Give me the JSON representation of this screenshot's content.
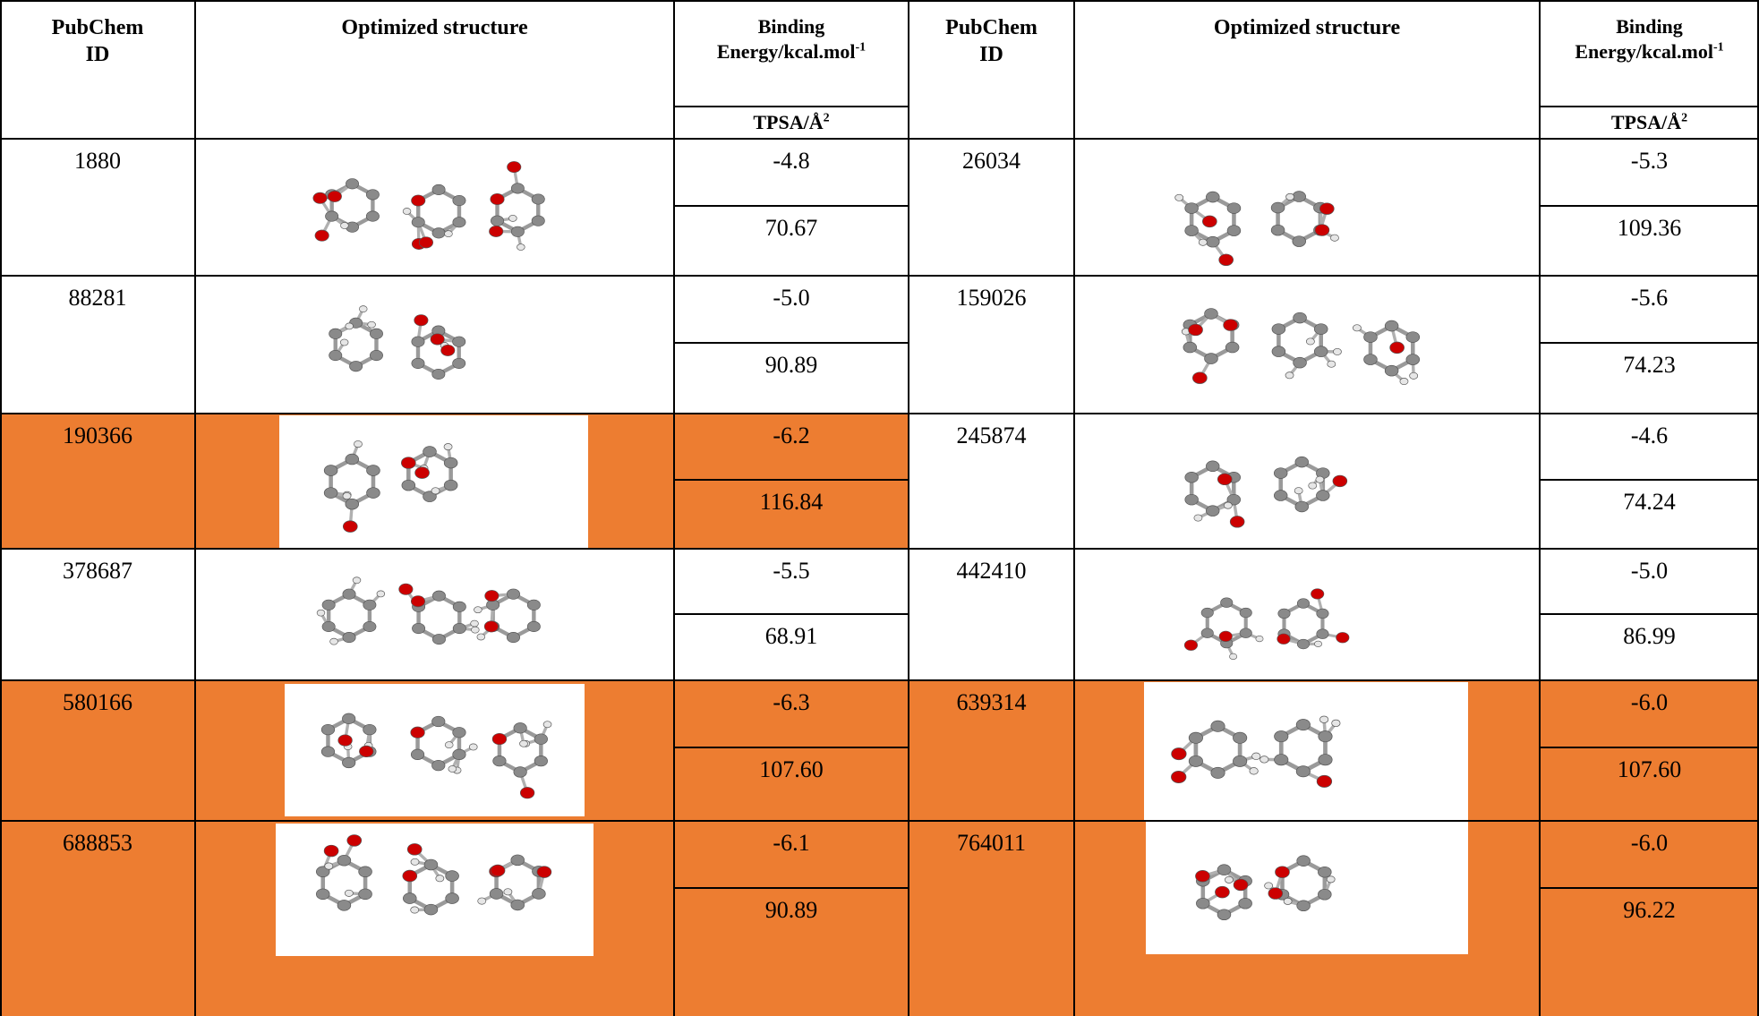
{
  "headers": {
    "pubchem_line1": "PubChem",
    "pubchem_line2": "ID",
    "structure": "Optimized structure",
    "binding_line1": "Binding",
    "binding_line2": "Energy/kcal.mol",
    "binding_sup": "-1",
    "tpsa": "TPSA/Å",
    "tpsa_sup": "2"
  },
  "rows": [
    {
      "left": {
        "id": "1880",
        "energy": "-4.8",
        "tpsa": "70.67",
        "highlight": false
      },
      "right": {
        "id": "26034",
        "energy": "-5.3",
        "tpsa": "109.36",
        "highlight": false
      }
    },
    {
      "left": {
        "id": "88281",
        "energy": "-5.0",
        "tpsa": "90.89",
        "highlight": false
      },
      "right": {
        "id": "159026",
        "energy": "-5.6",
        "tpsa": "74.23",
        "highlight": false
      }
    },
    {
      "left": {
        "id": "190366",
        "energy": "-6.2",
        "tpsa": "116.84",
        "highlight": true
      },
      "right": {
        "id": "245874",
        "energy": "-4.6",
        "tpsa": "74.24",
        "highlight": false
      }
    },
    {
      "left": {
        "id": "378687",
        "energy": "-5.5",
        "tpsa": "68.91",
        "highlight": false
      },
      "right": {
        "id": "442410",
        "energy": "-5.0",
        "tpsa": "86.99",
        "highlight": false
      }
    },
    {
      "left": {
        "id": "580166",
        "energy": "-6.3",
        "tpsa": "107.60",
        "highlight": true
      },
      "right": {
        "id": "639314",
        "energy": "-6.0",
        "tpsa": "107.60",
        "highlight": true
      }
    },
    {
      "left": {
        "id": "688853",
        "energy": "-6.1",
        "tpsa": "90.89",
        "highlight": true
      },
      "right": {
        "id": "764011",
        "energy": "-6.0",
        "tpsa": "96.22",
        "highlight": true
      }
    }
  ],
  "colors": {
    "highlight": "#ED7D31",
    "carbon": "#8a8a8a",
    "oxygen": "#cc0000",
    "hydrogen": "#e6e6e6"
  }
}
